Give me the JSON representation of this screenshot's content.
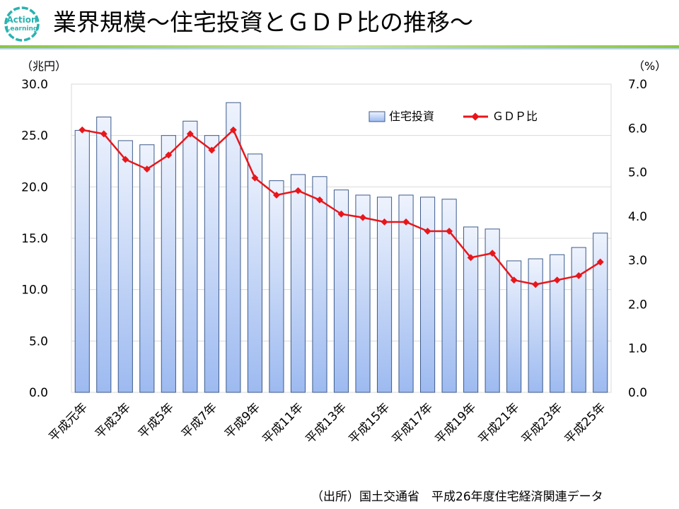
{
  "header": {
    "title": "業界規模～住宅投資とＧＤＰ比の推移～",
    "logo_line1": "Action",
    "logo_line2": "Learning"
  },
  "footer": {
    "source": "（出所）国土交通省　平成26年度住宅経済関連データ"
  },
  "colors": {
    "accent_teal": "#2ab3b0",
    "bar_top": "#eef3fd",
    "bar_bottom": "#9dbaf0",
    "bar_stroke": "#3d5a8a",
    "line": "#e8161b",
    "divider_green": "#8cc63f"
  },
  "chart_data": {
    "type": "bar",
    "title": "業界規模～住宅投資とＧＤＰ比の推移～",
    "categories": [
      "平成元年",
      "平成2年",
      "平成3年",
      "平成4年",
      "平成5年",
      "平成6年",
      "平成7年",
      "平成8年",
      "平成9年",
      "平成10年",
      "平成11年",
      "平成12年",
      "平成13年",
      "平成14年",
      "平成15年",
      "平成16年",
      "平成17年",
      "平成18年",
      "平成19年",
      "平成20年",
      "平成21年",
      "平成22年",
      "平成23年",
      "平成24年",
      "平成25年"
    ],
    "tick_labels": [
      "平成元年",
      "平成3年",
      "平成5年",
      "平成7年",
      "平成9年",
      "平成11年",
      "平成13年",
      "平成15年",
      "平成17年",
      "平成19年",
      "平成21年",
      "平成23年",
      "平成25年"
    ],
    "series": [
      {
        "name": "住宅投資",
        "type": "bar",
        "axis": "left",
        "values": [
          25.5,
          26.8,
          24.5,
          24.1,
          25.0,
          26.4,
          25.0,
          28.2,
          23.2,
          20.6,
          21.2,
          21.0,
          19.7,
          19.2,
          19.0,
          19.2,
          19.0,
          18.8,
          16.1,
          15.9,
          12.8,
          13.0,
          13.4,
          14.1,
          15.5
        ]
      },
      {
        "name": "ＧＤＰ比",
        "type": "line",
        "axis": "right",
        "values": [
          5.96,
          5.87,
          5.29,
          5.07,
          5.39,
          5.87,
          5.5,
          5.96,
          4.87,
          4.48,
          4.58,
          4.37,
          4.05,
          3.97,
          3.87,
          3.87,
          3.66,
          3.66,
          3.06,
          3.16,
          2.55,
          2.45,
          2.55,
          2.65,
          2.96
        ]
      }
    ],
    "ylabel_left": "（兆円）",
    "ylabel_right": "（%）",
    "ylim_left": [
      0,
      30
    ],
    "ylim_right": [
      0,
      7
    ],
    "yticks_left": [
      "0.0",
      "5.0",
      "10.0",
      "15.0",
      "20.0",
      "25.0",
      "30.0"
    ],
    "yticks_right": [
      "0.0",
      "1.0",
      "2.0",
      "3.0",
      "4.0",
      "5.0",
      "6.0",
      "7.0"
    ],
    "legend": [
      "住宅投資",
      "ＧＤＰ比"
    ],
    "legend_position": "top-right",
    "grid": true
  }
}
